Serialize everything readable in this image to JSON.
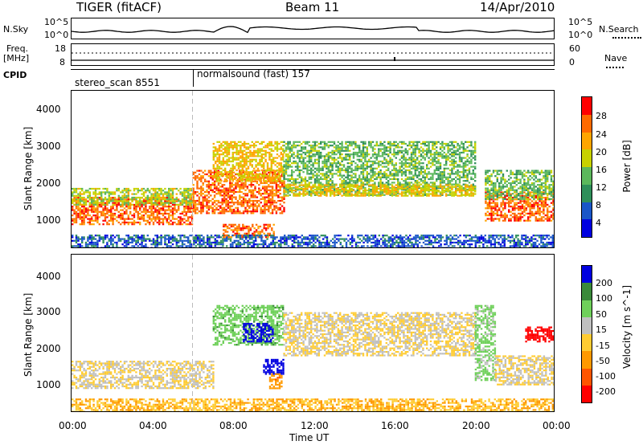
{
  "header": {
    "radar": "TIGER (fitACF)",
    "beam": "Beam 11",
    "date": "14/Apr/2010"
  },
  "top_panels": {
    "nsky_label": "N.Sky",
    "nsky_ticks": [
      "10^5",
      "10^0"
    ],
    "nsearch_label": "N.Search",
    "nsearch_ticks": [
      "10^5",
      "10^0"
    ],
    "freq_label_1": "Freq.",
    "freq_label_2": "[MHz]",
    "freq_ticks": [
      "18",
      "8"
    ],
    "nave_label": "Nave",
    "nave_ticks": [
      "60",
      "0"
    ],
    "cpid_label": "CPID",
    "cpid_segments": [
      {
        "name": "stereo_scan",
        "id": "8551",
        "text": "stereo_scan 8551"
      },
      {
        "name": "normalsound (fast)",
        "id": "157",
        "text": "normalsound (fast) 157"
      }
    ]
  },
  "power_panel": {
    "ylabel": "Slant Range [km]",
    "yticks": [
      "4000",
      "3000",
      "2000",
      "1000"
    ],
    "colorbar_label": "Power [dB]",
    "colorbar_ticks": [
      "28",
      "24",
      "20",
      "16",
      "12",
      "8",
      "4"
    ],
    "colors": [
      "#0000e0",
      "#1a56c8",
      "#2f8f5a",
      "#5cb85c",
      "#c8d200",
      "#ffa500",
      "#ff6a00",
      "#ff0000"
    ]
  },
  "velocity_panel": {
    "ylabel": "Slant Range [km]",
    "yticks": [
      "4000",
      "3000",
      "2000",
      "1000"
    ],
    "colorbar_label": "Velocity [m s^-1]",
    "colorbar_ticks": [
      "200",
      "100",
      "50",
      "15",
      "-15",
      "-50",
      "-100",
      "-200"
    ],
    "colors": [
      "#0000e0",
      "#3a8a3a",
      "#6fd05a",
      "#c0c0c0",
      "#ffcc33",
      "#ff9900",
      "#ff5500",
      "#ff0000"
    ]
  },
  "xaxis": {
    "ticks": [
      "00:00",
      "04:00",
      "08:00",
      "12:00",
      "16:00",
      "20:00",
      "00:00"
    ],
    "label": "Time UT"
  },
  "chart_data": {
    "type": "heatmap",
    "title": "TIGER (fitACF)",
    "subtitle": "Beam 11",
    "date": "14/Apr/2010",
    "xlabel": "Time UT",
    "ylabel": "Slant Range [km]",
    "xlim_hours": [
      0,
      24
    ],
    "ylim_km": [
      200,
      4600
    ],
    "cpid_switch_hour": 6,
    "panels": [
      {
        "quantity": "Power",
        "units": "dB",
        "clim": [
          0,
          32
        ],
        "regions": [
          {
            "hours": [
              0,
              6
            ],
            "range_km": [
              900,
              1650
            ],
            "value": 26
          },
          {
            "hours": [
              0,
              6
            ],
            "range_km": [
              1450,
              1900
            ],
            "value": 17
          },
          {
            "hours": [
              6,
              10.5
            ],
            "range_km": [
              1200,
              2400
            ],
            "value": 26
          },
          {
            "hours": [
              7,
              10.5
            ],
            "range_km": [
              2100,
              3200
            ],
            "value": 20
          },
          {
            "hours": [
              7.5,
              10
            ],
            "range_km": [
              550,
              900
            ],
            "value": 26
          },
          {
            "hours": [
              10.5,
              20
            ],
            "range_km": [
              1700,
              3200
            ],
            "value": 14
          },
          {
            "hours": [
              10.5,
              20
            ],
            "range_km": [
              1700,
              2000
            ],
            "value": 20
          },
          {
            "hours": [
              20.5,
              24
            ],
            "range_km": [
              1000,
              1800
            ],
            "value": 26
          },
          {
            "hours": [
              20.5,
              24
            ],
            "range_km": [
              1600,
              2400
            ],
            "value": 14
          },
          {
            "hours": [
              0,
              24
            ],
            "range_km": [
              200,
              600
            ],
            "value": 6
          }
        ]
      },
      {
        "quantity": "Velocity",
        "units": "m s^-1",
        "clim": [
          -250,
          250
        ],
        "regions": [
          {
            "hours": [
              0,
              7
            ],
            "range_km": [
              900,
              1650
            ],
            "value": 0
          },
          {
            "hours": [
              7,
              10.5
            ],
            "range_km": [
              2100,
              3200
            ],
            "value": 60
          },
          {
            "hours": [
              8.5,
              10
            ],
            "range_km": [
              2200,
              2700
            ],
            "value": 220
          },
          {
            "hours": [
              9.5,
              10.5
            ],
            "range_km": [
              1300,
              1700
            ],
            "value": 220
          },
          {
            "hours": [
              9.8,
              10.4
            ],
            "range_km": [
              900,
              1300
            ],
            "value": -60
          },
          {
            "hours": [
              10.5,
              20
            ],
            "range_km": [
              1800,
              3000
            ],
            "value": 0
          },
          {
            "hours": [
              20,
              21
            ],
            "range_km": [
              1100,
              3200
            ],
            "value": 40
          },
          {
            "hours": [
              21,
              24
            ],
            "range_km": [
              1000,
              1800
            ],
            "value": 0
          },
          {
            "hours": [
              22.5,
              24
            ],
            "range_km": [
              2200,
              2600
            ],
            "value": -220
          },
          {
            "hours": [
              0,
              24
            ],
            "range_km": [
              200,
              600
            ],
            "value": -30
          }
        ]
      }
    ]
  }
}
